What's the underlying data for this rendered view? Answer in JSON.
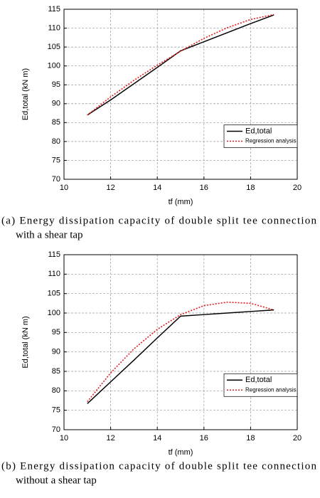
{
  "chart_data": [
    {
      "type": "line",
      "caption": [
        "(a) Energy dissipation capacity of double split tee connection",
        "with a shear tap"
      ],
      "xlabel": "tf (mm)",
      "ylabel": "Ed,total (kN m)",
      "x": [
        11,
        12,
        13,
        14,
        15,
        16,
        17,
        18,
        19
      ],
      "series": [
        {
          "name": "Ed,total",
          "color": "#000000",
          "linestyle": "solid",
          "values": [
            87,
            91,
            95.3,
            99.6,
            104,
            106.4,
            108.8,
            111.2,
            113.5
          ]
        },
        {
          "name": "Regression analysis",
          "color": "#e41a1c",
          "linestyle": "dotted",
          "values": [
            87,
            91.8,
            96.2,
            100.2,
            103.9,
            107.3,
            110.1,
            112.3,
            113.6
          ]
        }
      ],
      "xlim": [
        10,
        20
      ],
      "xticks": [
        10,
        12,
        14,
        16,
        18,
        20
      ],
      "ylim": [
        70,
        115
      ],
      "yticks": [
        70,
        75,
        80,
        85,
        90,
        95,
        100,
        105,
        110,
        115
      ],
      "grid": true,
      "legend": "center right"
    },
    {
      "type": "line",
      "caption": [
        "(b) Energy dissipation capacity of double split tee connection",
        "without a shear tap"
      ],
      "xlabel": "tf (mm)",
      "ylabel": "Ed,total (kN m)",
      "x": [
        11,
        12,
        13,
        14,
        15,
        16,
        17,
        18,
        19
      ],
      "series": [
        {
          "name": "Ed,total",
          "color": "#000000",
          "linestyle": "solid",
          "values": [
            76.7,
            82.3,
            87.9,
            93.6,
            99.2,
            99.6,
            100,
            100.4,
            100.8
          ]
        },
        {
          "name": "Regression analysis",
          "color": "#e41a1c",
          "linestyle": "dotted",
          "values": [
            77.2,
            84.6,
            90.8,
            95.8,
            99.6,
            101.9,
            102.8,
            102.5,
            100.8
          ]
        }
      ],
      "xlim": [
        10,
        20
      ],
      "xticks": [
        10,
        12,
        14,
        16,
        18,
        20
      ],
      "ylim": [
        70,
        115
      ],
      "yticks": [
        70,
        75,
        80,
        85,
        90,
        95,
        100,
        105,
        110,
        115
      ],
      "grid": true,
      "legend": "center right"
    }
  ]
}
